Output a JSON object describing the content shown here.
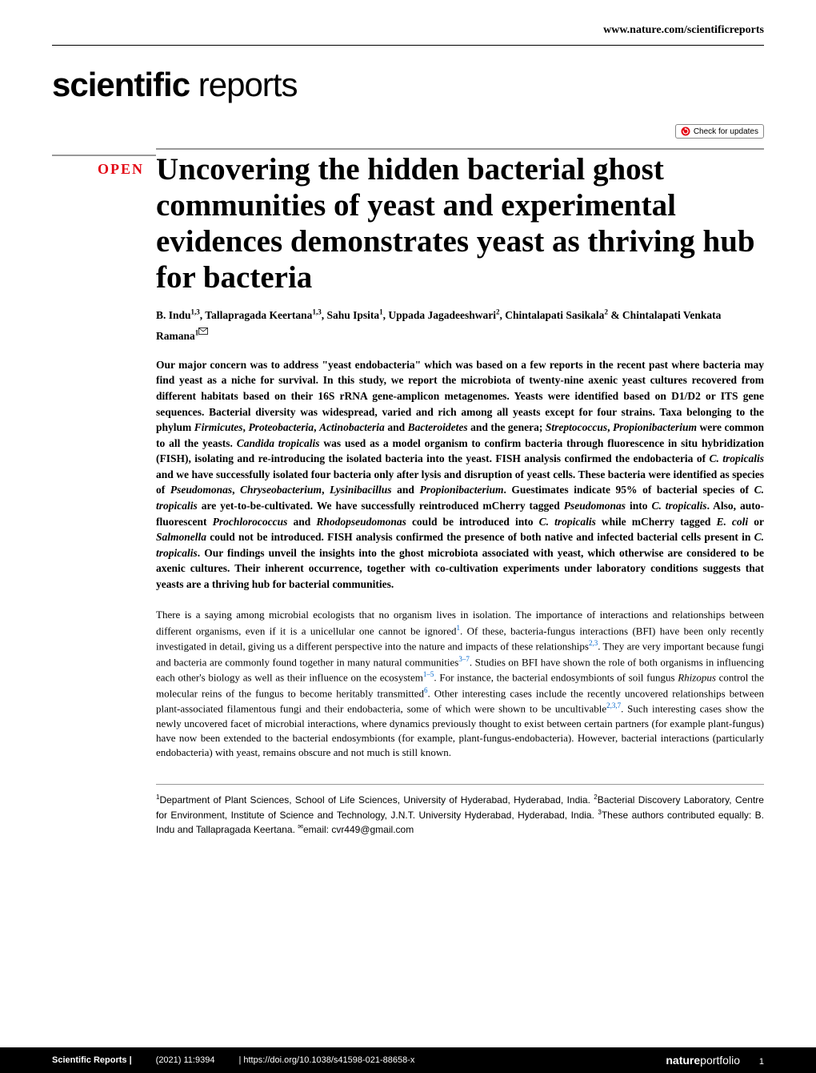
{
  "header": {
    "url": "www.nature.com/scientificreports",
    "journal_bold": "scientific",
    "journal_light": " reports",
    "check_updates_label": "Check for updates"
  },
  "article": {
    "open_badge": "OPEN",
    "title": "Uncovering the hidden bacterial ghost communities of yeast and experimental evidences demonstrates yeast as thriving hub for bacteria",
    "authors_html": "B. Indu<sup>1,3</sup>, Tallapragada Keertana<sup>1,3</sup>, Sahu Ipsita<sup>1</sup>, Uppada Jagadeeshwari<sup>2</sup>, Chintalapati Sasikala<sup>2</sup> & Chintalapati Venkata Ramana<sup>1</sup>",
    "abstract_html": "Our major concern was to address \"yeast endobacteria\" which was based on a few reports in the recent past where bacteria may find yeast as a niche for survival. In this study, we report the microbiota of twenty-nine axenic yeast cultures recovered from different habitats based on their 16S rRNA gene-amplicon metagenomes. Yeasts were identified based on D1/D2 or ITS gene sequences. Bacterial diversity was widespread, varied and rich among all yeasts except for four strains. Taxa belonging to the phylum <em>Firmicutes</em>, <em>Proteobacteria</em>, <em>Actinobacteria</em> and <em>Bacteroidetes</em> and the genera; <em>Streptococcus</em>, <em>Propionibacterium</em> were common to all the yeasts. <em>Candida tropicalis</em> was used as a model organism to confirm bacteria through fluorescence in situ hybridization (FISH), isolating and re-introducing the isolated bacteria into the yeast. FISH analysis confirmed the endobacteria of <em>C. tropicalis</em> and we have successfully isolated four bacteria only after lysis and disruption of yeast cells. These bacteria were identified as species of <em>Pseudomonas</em>, <em>Chryseobacterium</em>, <em>Lysinibacillus</em> and <em>Propionibacterium</em>. Guestimates indicate 95% of bacterial species of <em>C. tropicalis</em> are yet-to-be-cultivated. We have successfully reintroduced mCherry tagged <em>Pseudomonas</em> into <em>C. tropicalis</em>. Also, auto-fluorescent <em>Prochlorococcus</em> and <em>Rhodopseudomonas</em> could be introduced into <em>C. tropicalis</em> while mCherry tagged <em>E. coli</em> or <em>Salmonella</em> could not be introduced. FISH analysis confirmed the presence of both native and infected bacterial cells present in <em>C. tropicalis</em>. Our findings unveil the insights into the ghost microbiota associated with yeast, which otherwise are considered to be axenic cultures. Their inherent occurrence, together with co-cultivation experiments under laboratory conditions suggests that yeasts are a thriving hub for bacterial communities.",
    "body_html": "There is a saying among microbial ecologists that no organism lives in isolation. The importance of interactions and relationships between different organisms, even if it is a unicellular one cannot be ignored<sup>1</sup>. Of these, bacteria-fungus interactions (BFI) have been only recently investigated in detail, giving us a different perspective into the nature and impacts of these relationships<sup>2,3</sup>. They are very important because fungi and bacteria are commonly found together in many natural communities<sup>3–7</sup>. Studies on BFI have shown the role of both organisms in influencing each other's biology as well as their influence on the ecosystem<sup>1–5</sup>. For instance, the bacterial endosymbionts of soil fungus <em>Rhizopus</em> control the molecular reins of the fungus to become heritably transmitted<sup>6</sup>. Other interesting cases include the recently uncovered relationships between plant-associated filamentous fungi and their endobacteria, some of which were shown to be uncultivable<sup>2,3,7</sup>. Such interesting cases show the newly uncovered facet of microbial interactions, where dynamics previously thought to exist between certain partners (for example plant-fungus) have now been extended to the bacterial endosymbionts (for example, plant-fungus-endobacteria). However, bacterial interactions (particularly endobacteria) with yeast, remains obscure and not much is still known.",
    "affiliations_html": "<sup>1</sup>Department of Plant Sciences, School of Life Sciences, University of Hyderabad, Hyderabad, India. <sup>2</sup>Bacterial Discovery Laboratory, Centre for Environment, Institute of Science and Technology, J.N.T. University Hyderabad, Hyderabad, India. <sup>3</sup>These authors contributed equally: B. Indu and Tallapragada Keertana. <sup>✉</sup>email: cvr449@gmail.com"
  },
  "footer": {
    "journal": "Scientific Reports |",
    "citation": "(2021) 11:9394",
    "doi": "| https://doi.org/10.1038/s41598-021-88658-x",
    "logo_bold": "nature",
    "logo_light": "portfolio",
    "page": "1"
  },
  "colors": {
    "open_red": "#e30613",
    "ref_blue": "#0066cc",
    "rule_gray": "#999999",
    "footer_bg": "#000000",
    "footer_fg": "#ffffff"
  }
}
